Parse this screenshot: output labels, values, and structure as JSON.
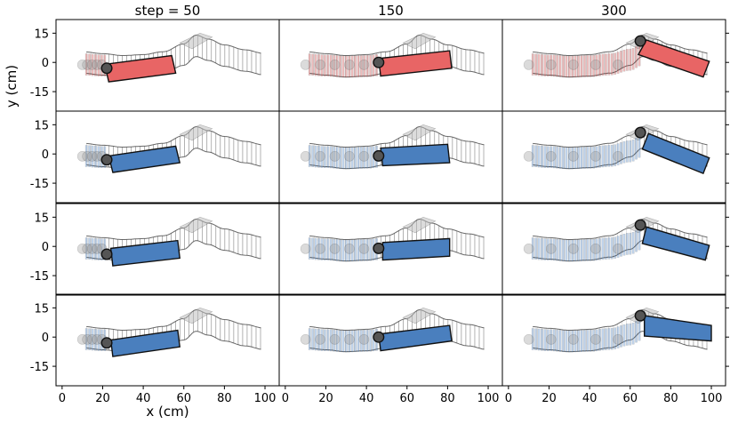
{
  "chart_data": {
    "type": "line",
    "layout": {
      "rows": 4,
      "cols": 3
    },
    "column_titles": [
      "step = 50",
      "150",
      "300"
    ],
    "steps": [
      50,
      150,
      300
    ],
    "xlabel": "x (cm)",
    "ylabel": "y (cm)",
    "xlim": [
      -3,
      107
    ],
    "ylim": [
      -25,
      22
    ],
    "x_ticks": [
      0,
      20,
      40,
      60,
      80,
      100
    ],
    "y_ticks": [
      -15,
      0,
      15
    ],
    "grid": false,
    "colors": {
      "row1_box": "#e86565",
      "rows2to4_box": "#4a7fbe",
      "row1_trail": "#cd4040",
      "rows2to4_trail": "#4a84c8",
      "ghost": "#888888",
      "marker": "#555555",
      "edge": "#111111"
    },
    "reference_trajectory": {
      "x": [
        10,
        20,
        30,
        40,
        50,
        60,
        66,
        72,
        80,
        90,
        100
      ],
      "y": [
        0,
        -1,
        -2,
        -1.5,
        0,
        4,
        8.5,
        6.5,
        3.5,
        1,
        -1
      ]
    },
    "panels": [
      {
        "row": 1,
        "col": 1,
        "step": 50,
        "end_marker": [
          22,
          -3
        ],
        "box_corners": [
          [
            23,
            -10
          ],
          [
            56,
            -5.5
          ],
          [
            54,
            3.5
          ],
          [
            21,
            -1
          ]
        ],
        "trail_to_x": 22
      },
      {
        "row": 1,
        "col": 2,
        "step": 150,
        "end_marker": [
          46,
          0
        ],
        "box_corners": [
          [
            47,
            -7
          ],
          [
            82,
            -3
          ],
          [
            81,
            6
          ],
          [
            46,
            2
          ]
        ],
        "trail_to_x": 46
      },
      {
        "row": 1,
        "col": 3,
        "step": 300,
        "end_marker": [
          65,
          11
        ],
        "box_corners": [
          [
            64,
            4
          ],
          [
            96,
            -7.5
          ],
          [
            99,
            0.5
          ],
          [
            68,
            11.5
          ]
        ],
        "trail_to_x": 65
      },
      {
        "row": 2,
        "col": 1,
        "step": 50,
        "end_marker": [
          22,
          -3
        ],
        "box_corners": [
          [
            25,
            -9.5
          ],
          [
            58,
            -4.5
          ],
          [
            56,
            4
          ],
          [
            23,
            -1
          ]
        ],
        "trail_to_x": 22
      },
      {
        "row": 2,
        "col": 2,
        "step": 150,
        "end_marker": [
          46,
          -1
        ],
        "box_corners": [
          [
            48,
            -6
          ],
          [
            81,
            -4.5
          ],
          [
            80,
            5
          ],
          [
            47,
            3
          ]
        ],
        "trail_to_x": 46
      },
      {
        "row": 2,
        "col": 3,
        "step": 300,
        "end_marker": [
          65,
          11
        ],
        "box_corners": [
          [
            66,
            2.5
          ],
          [
            96,
            -10
          ],
          [
            99,
            -2
          ],
          [
            69,
            10.5
          ]
        ],
        "trail_to_x": 65
      },
      {
        "row": 3,
        "col": 1,
        "step": 50,
        "end_marker": [
          22,
          -4
        ],
        "box_corners": [
          [
            25,
            -10
          ],
          [
            58,
            -6
          ],
          [
            57,
            3
          ],
          [
            24,
            -1
          ]
        ],
        "trail_to_x": 22
      },
      {
        "row": 3,
        "col": 2,
        "step": 150,
        "end_marker": [
          46,
          -1
        ],
        "box_corners": [
          [
            48,
            -7
          ],
          [
            81,
            -5
          ],
          [
            81,
            4
          ],
          [
            48,
            2
          ]
        ],
        "trail_to_x": 46
      },
      {
        "row": 3,
        "col": 3,
        "step": 300,
        "end_marker": [
          65,
          11
        ],
        "box_corners": [
          [
            66,
            1.5
          ],
          [
            97,
            -7
          ],
          [
            99,
            0.5
          ],
          [
            68,
            10
          ]
        ],
        "trail_to_x": 65
      },
      {
        "row": 4,
        "col": 1,
        "step": 50,
        "end_marker": [
          22,
          -3
        ],
        "box_corners": [
          [
            25,
            -10
          ],
          [
            58,
            -5
          ],
          [
            57,
            3.5
          ],
          [
            24,
            -1.5
          ]
        ],
        "trail_to_x": 22
      },
      {
        "row": 4,
        "col": 2,
        "step": 150,
        "end_marker": [
          46,
          0
        ],
        "box_corners": [
          [
            47,
            -7
          ],
          [
            82,
            -2
          ],
          [
            81,
            6
          ],
          [
            46,
            1.5
          ]
        ],
        "trail_to_x": 46
      },
      {
        "row": 4,
        "col": 3,
        "step": 300,
        "end_marker": [
          65,
          11
        ],
        "box_corners": [
          [
            67,
            0.5
          ],
          [
            100,
            -2
          ],
          [
            100,
            6
          ],
          [
            67,
            11
          ]
        ],
        "trail_to_x": 65
      }
    ]
  }
}
